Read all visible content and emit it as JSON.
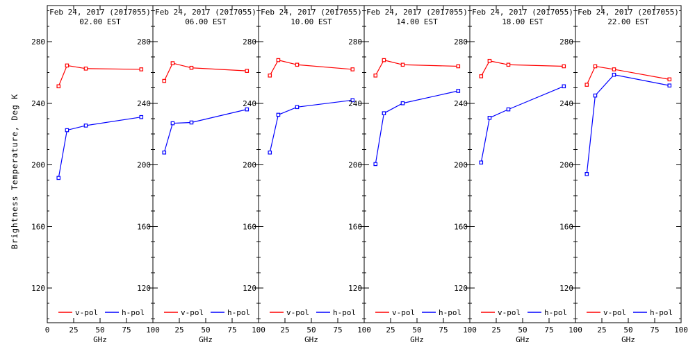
{
  "chart_data": {
    "type": "line",
    "title_date": "Feb 24, 2017 (2017055)",
    "ylabel": "Brightness Temperature, Deg K",
    "xlabel": "GHz",
    "x": [
      10.7,
      18.7,
      36.5,
      89
    ],
    "x_ticks": [
      0,
      25,
      50,
      75,
      100
    ],
    "xlim": [
      0,
      100
    ],
    "y_ticks": [
      120,
      160,
      200,
      240,
      280
    ],
    "y_minor_step": 10,
    "ylim": [
      97.5,
      303.5
    ],
    "grid": "off",
    "legend_position": "bottom-inside",
    "legend": [
      {
        "name": "v-pol",
        "color": "#ff0000"
      },
      {
        "name": "h-pol",
        "color": "#0000ff"
      }
    ],
    "colors": {
      "axis": "#000000",
      "background": "#ffffff",
      "v_pol": "#ff0000",
      "h_pol": "#0000ff"
    },
    "panels": [
      {
        "time": "02.00 EST",
        "series": [
          {
            "name": "v-pol",
            "values": [
              251,
              264.5,
              262.5,
              262
            ]
          },
          {
            "name": "h-pol",
            "values": [
              191.5,
              222.5,
              225.5,
              231
            ]
          }
        ]
      },
      {
        "time": "06.00 EST",
        "series": [
          {
            "name": "v-pol",
            "values": [
              254.5,
              266,
              263,
              261
            ]
          },
          {
            "name": "h-pol",
            "values": [
              208,
              227,
              227.5,
              236
            ]
          }
        ]
      },
      {
        "time": "10.00 EST",
        "series": [
          {
            "name": "v-pol",
            "values": [
              258,
              268,
              265,
              262
            ]
          },
          {
            "name": "h-pol",
            "values": [
              208,
              232.5,
              237.5,
              242
            ]
          }
        ]
      },
      {
        "time": "14.00 EST",
        "series": [
          {
            "name": "v-pol",
            "values": [
              258,
              268,
              265,
              264
            ]
          },
          {
            "name": "h-pol",
            "values": [
              200.5,
              233.5,
              240,
              248
            ]
          }
        ]
      },
      {
        "time": "18.00 EST",
        "series": [
          {
            "name": "v-pol",
            "values": [
              257.5,
              267.5,
              265,
              264
            ]
          },
          {
            "name": "h-pol",
            "values": [
              201.5,
              230.5,
              236,
              251
            ]
          }
        ]
      },
      {
        "time": "22.00 EST",
        "series": [
          {
            "name": "v-pol",
            "values": [
              252,
              264,
              262,
              255.5
            ]
          },
          {
            "name": "h-pol",
            "values": [
              194,
              245,
              258.5,
              251.5
            ]
          }
        ]
      }
    ]
  }
}
